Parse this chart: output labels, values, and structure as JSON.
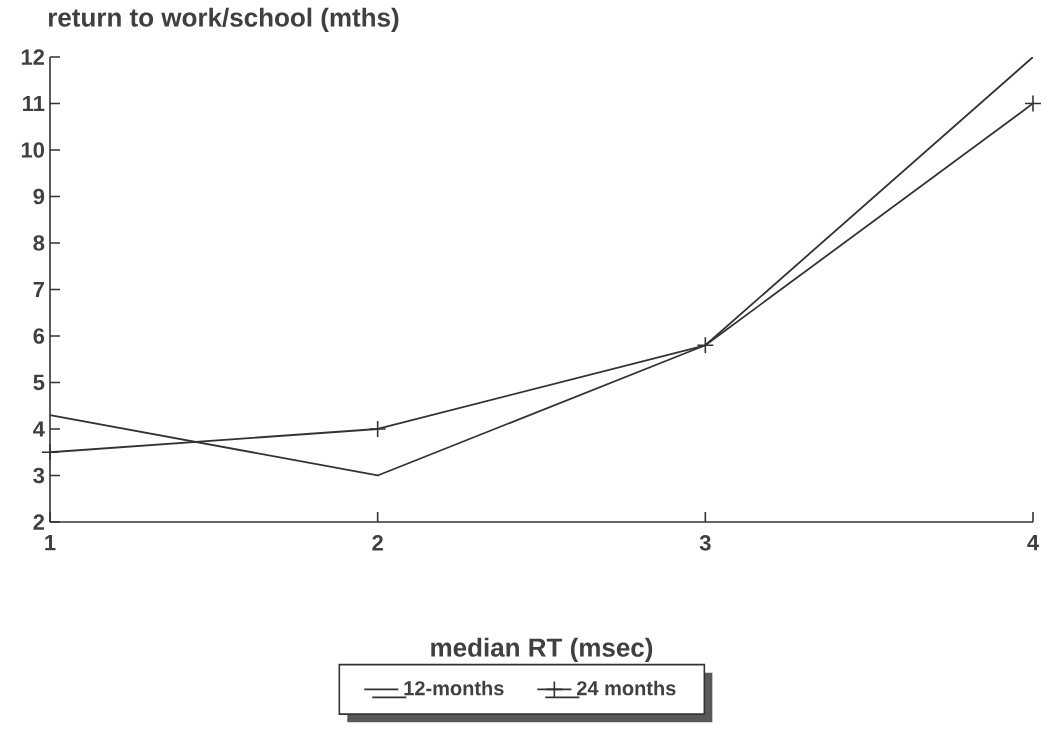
{
  "chart_data": {
    "type": "line",
    "xlabel": "median RT (msec)",
    "ylabel": "return to work/school (mths)",
    "x": [
      1,
      2,
      3,
      4
    ],
    "series": [
      {
        "name": "12-months",
        "color": "#333333",
        "values": [
          4.3,
          3.0,
          5.8,
          12.0
        ]
      },
      {
        "name": "24 months",
        "color": "#333333",
        "marker": "cross",
        "values": [
          3.5,
          4.0,
          5.8,
          11.0
        ]
      }
    ],
    "xlim": [
      1,
      4
    ],
    "ylim": [
      2,
      12
    ],
    "xticks": [
      1,
      2,
      3,
      4
    ],
    "yticks": [
      2,
      3,
      4,
      5,
      6,
      7,
      8,
      9,
      10,
      11,
      12
    ],
    "legend": "bottom",
    "line_style": "solid"
  }
}
